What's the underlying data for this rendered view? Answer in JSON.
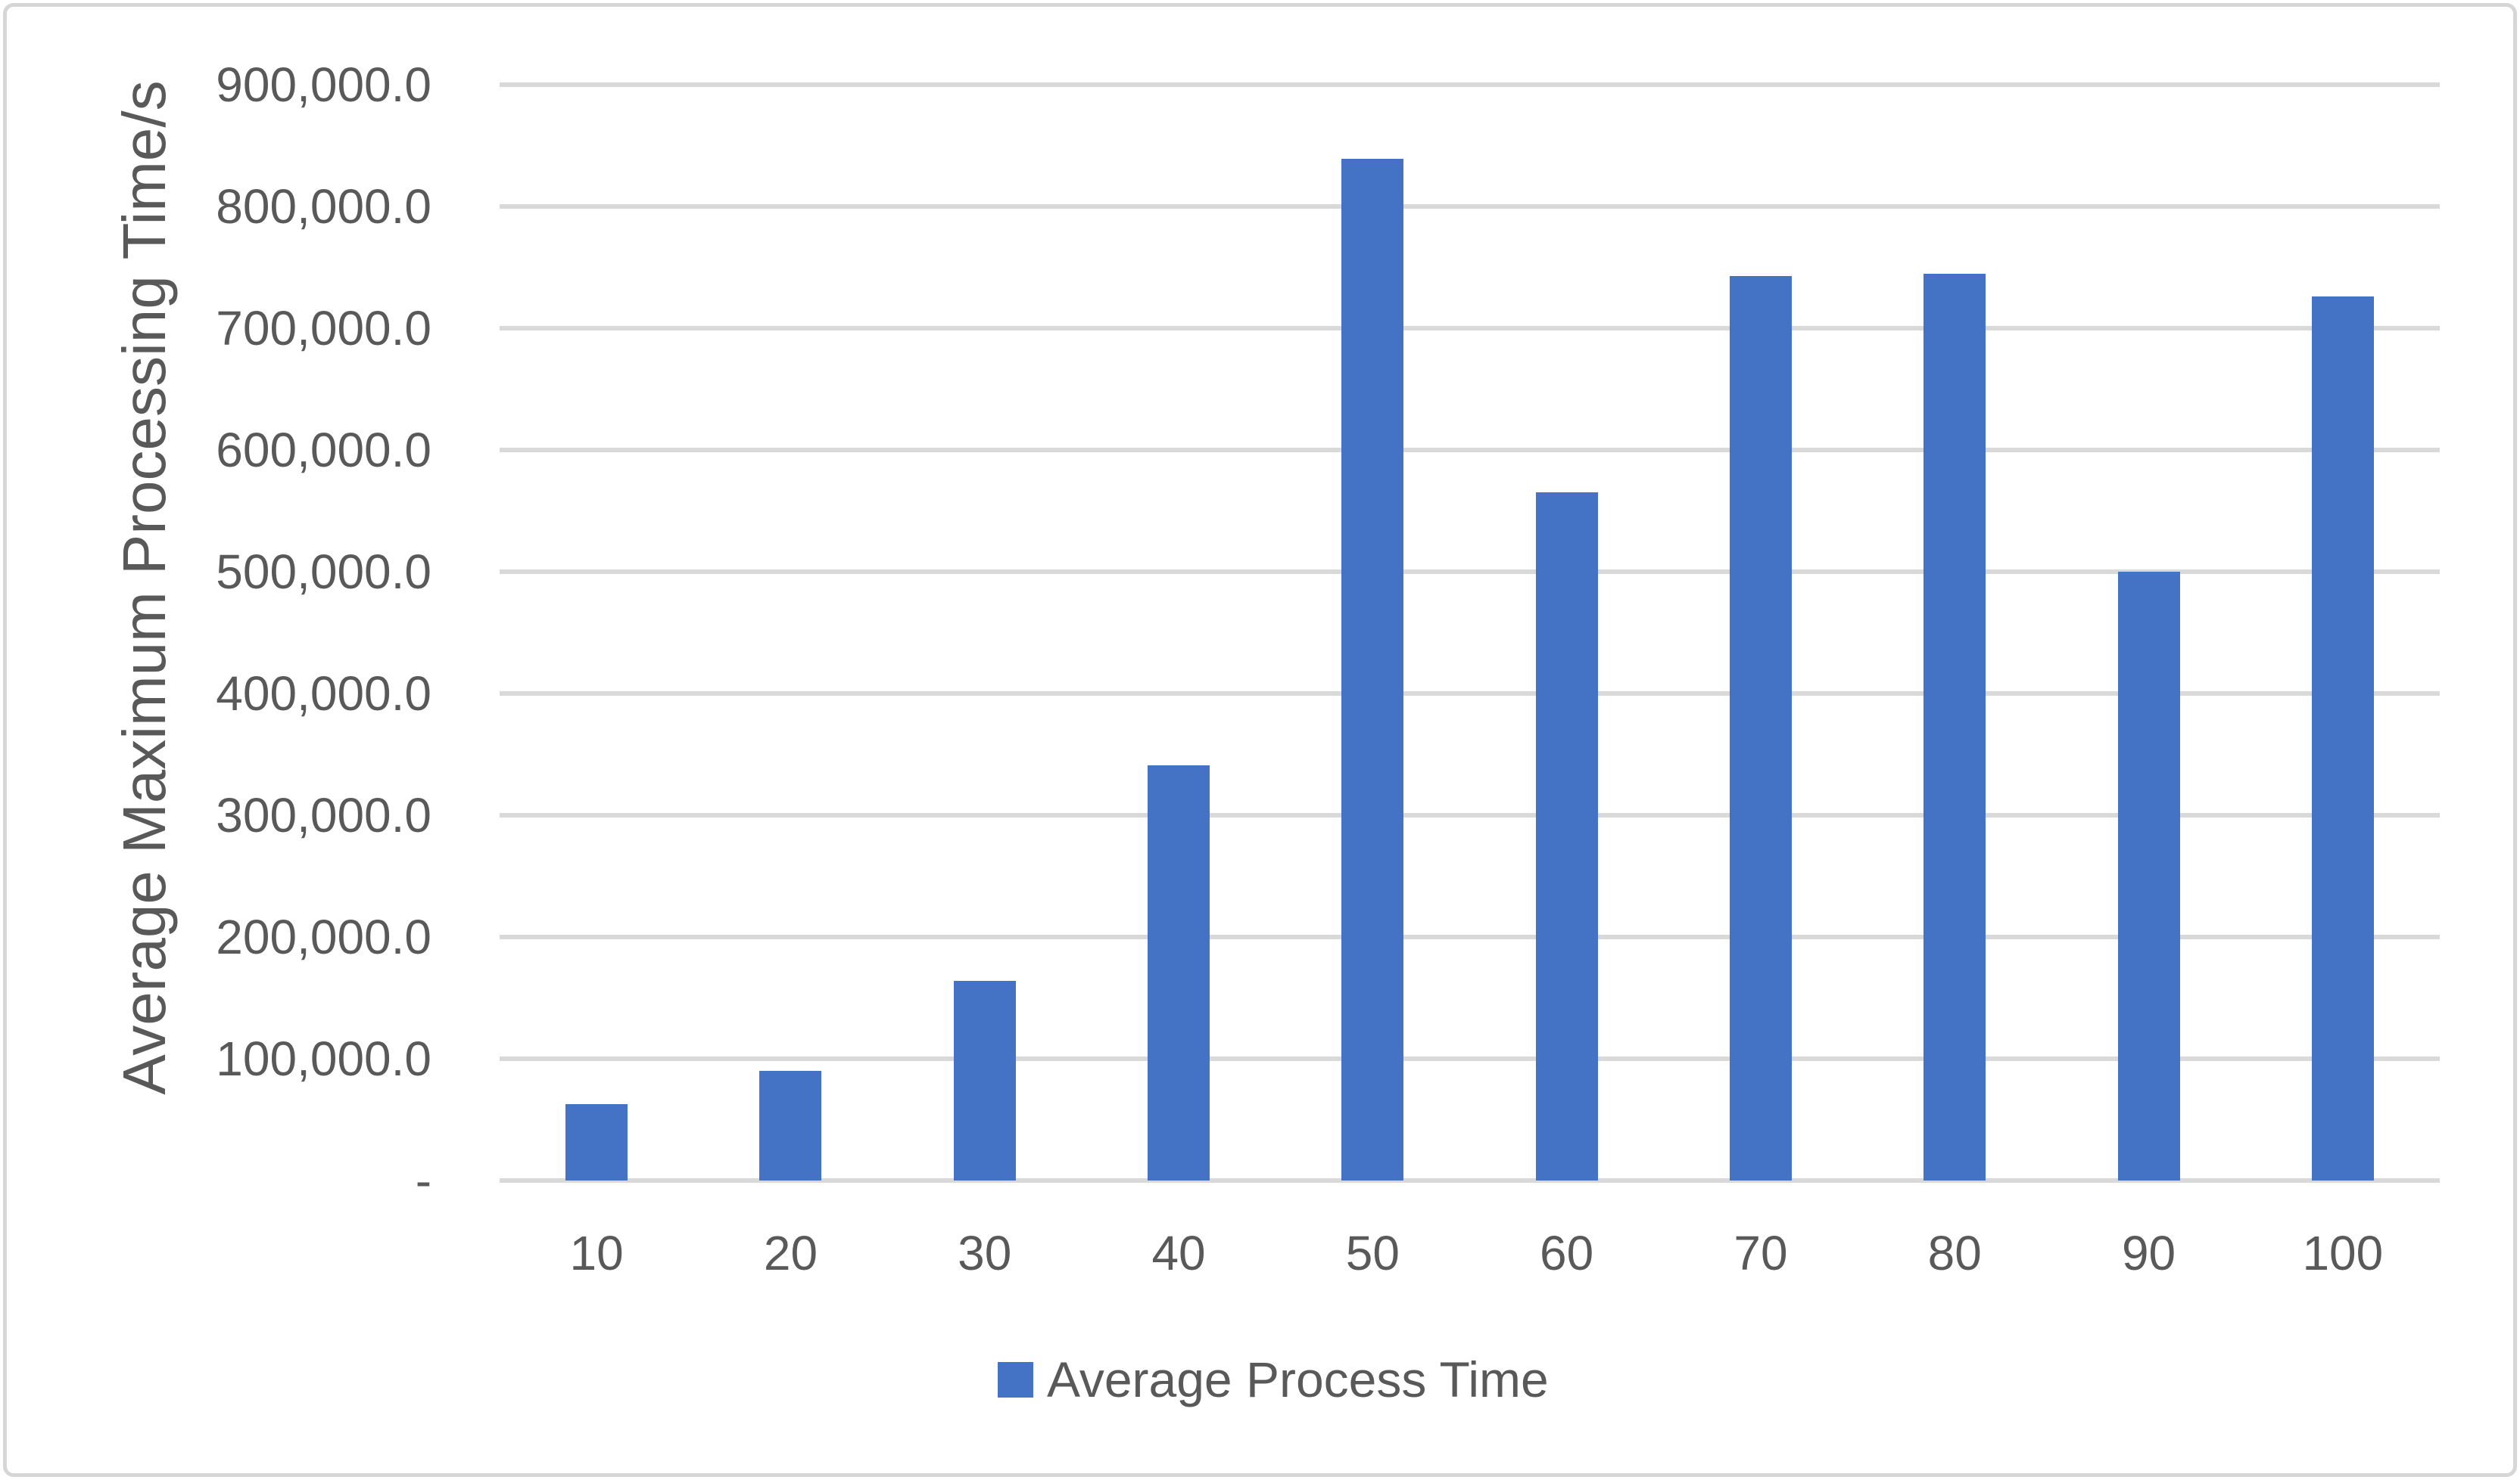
{
  "chart_data": {
    "type": "bar",
    "title": "",
    "categories": [
      "10",
      "20",
      "30",
      "40",
      "50",
      "60",
      "70",
      "80",
      "90",
      "100"
    ],
    "series": [
      {
        "name": "Average Process Time",
        "values": [
          63000,
          90000,
          164000,
          341000,
          839000,
          565000,
          743000,
          745000,
          500000,
          726000
        ]
      }
    ],
    "xlabel": "",
    "ylabel": "Average Maximum Processing Time/s",
    "ylim": [
      0,
      900000
    ],
    "ytick_step": 100000,
    "ytick_labels": [
      "-",
      "100,000.0",
      "200,000.0",
      "300,000.0",
      "400,000.0",
      "500,000.0",
      "600,000.0",
      "700,000.0",
      "800,000.0",
      "900,000.0"
    ],
    "grid": true,
    "legend_position": "bottom",
    "bar_color": "#4472C4"
  },
  "colors": {
    "bar": "#4472C4",
    "gridline": "#d9d9d9",
    "text": "#595959",
    "frame_border": "#d6d6d6",
    "background": "#ffffff"
  }
}
